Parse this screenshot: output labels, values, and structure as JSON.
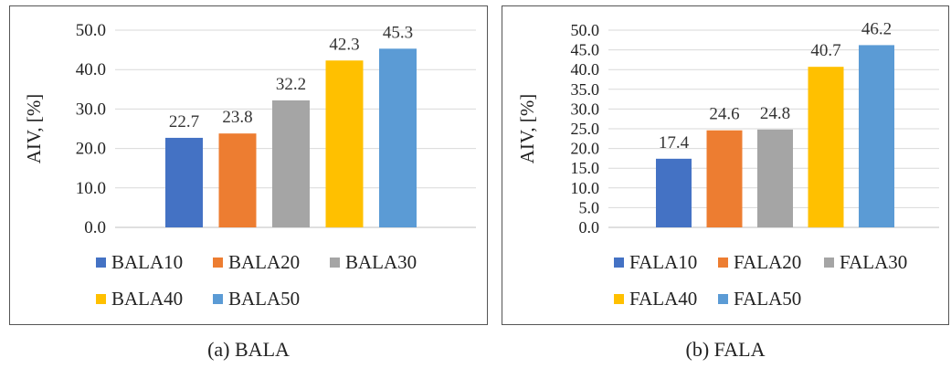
{
  "panels": [
    {
      "caption": "(a) BALA",
      "chart_data": {
        "type": "bar",
        "title": "",
        "xlabel": "",
        "ylabel": "AIV, [%]",
        "ylim": [
          0,
          50
        ],
        "yticks": [
          "0.0",
          "10.0",
          "20.0",
          "30.0",
          "40.0",
          "50.0"
        ],
        "grid": true,
        "legend_position": "bottom",
        "series": [
          {
            "name": "BALA10",
            "value": 22.7,
            "label": "22.7",
            "color": "#4472C4"
          },
          {
            "name": "BALA20",
            "value": 23.8,
            "label": "23.8",
            "color": "#ED7D31"
          },
          {
            "name": "BALA30",
            "value": 32.2,
            "label": "32.2",
            "color": "#A5A5A5"
          },
          {
            "name": "BALA40",
            "value": 42.3,
            "label": "42.3",
            "color": "#FFC000"
          },
          {
            "name": "BALA50",
            "value": 45.3,
            "label": "45.3",
            "color": "#5B9BD5"
          }
        ]
      }
    },
    {
      "caption": "(b) FALA",
      "chart_data": {
        "type": "bar",
        "title": "",
        "xlabel": "",
        "ylabel": "AIV, [%]",
        "ylim": [
          0,
          50
        ],
        "yticks": [
          "0.0",
          "5.0",
          "10.0",
          "15.0",
          "20.0",
          "25.0",
          "30.0",
          "35.0",
          "40.0",
          "45.0",
          "50.0"
        ],
        "grid": true,
        "legend_position": "bottom",
        "series": [
          {
            "name": "FALA10",
            "value": 17.4,
            "label": "17.4",
            "color": "#4472C4"
          },
          {
            "name": "FALA20",
            "value": 24.6,
            "label": "24.6",
            "color": "#ED7D31"
          },
          {
            "name": "FALA30",
            "value": 24.8,
            "label": "24.8",
            "color": "#A5A5A5"
          },
          {
            "name": "FALA40",
            "value": 40.7,
            "label": "40.7",
            "color": "#FFC000"
          },
          {
            "name": "FALA50",
            "value": 46.2,
            "label": "46.2",
            "color": "#5B9BD5"
          }
        ]
      }
    }
  ]
}
